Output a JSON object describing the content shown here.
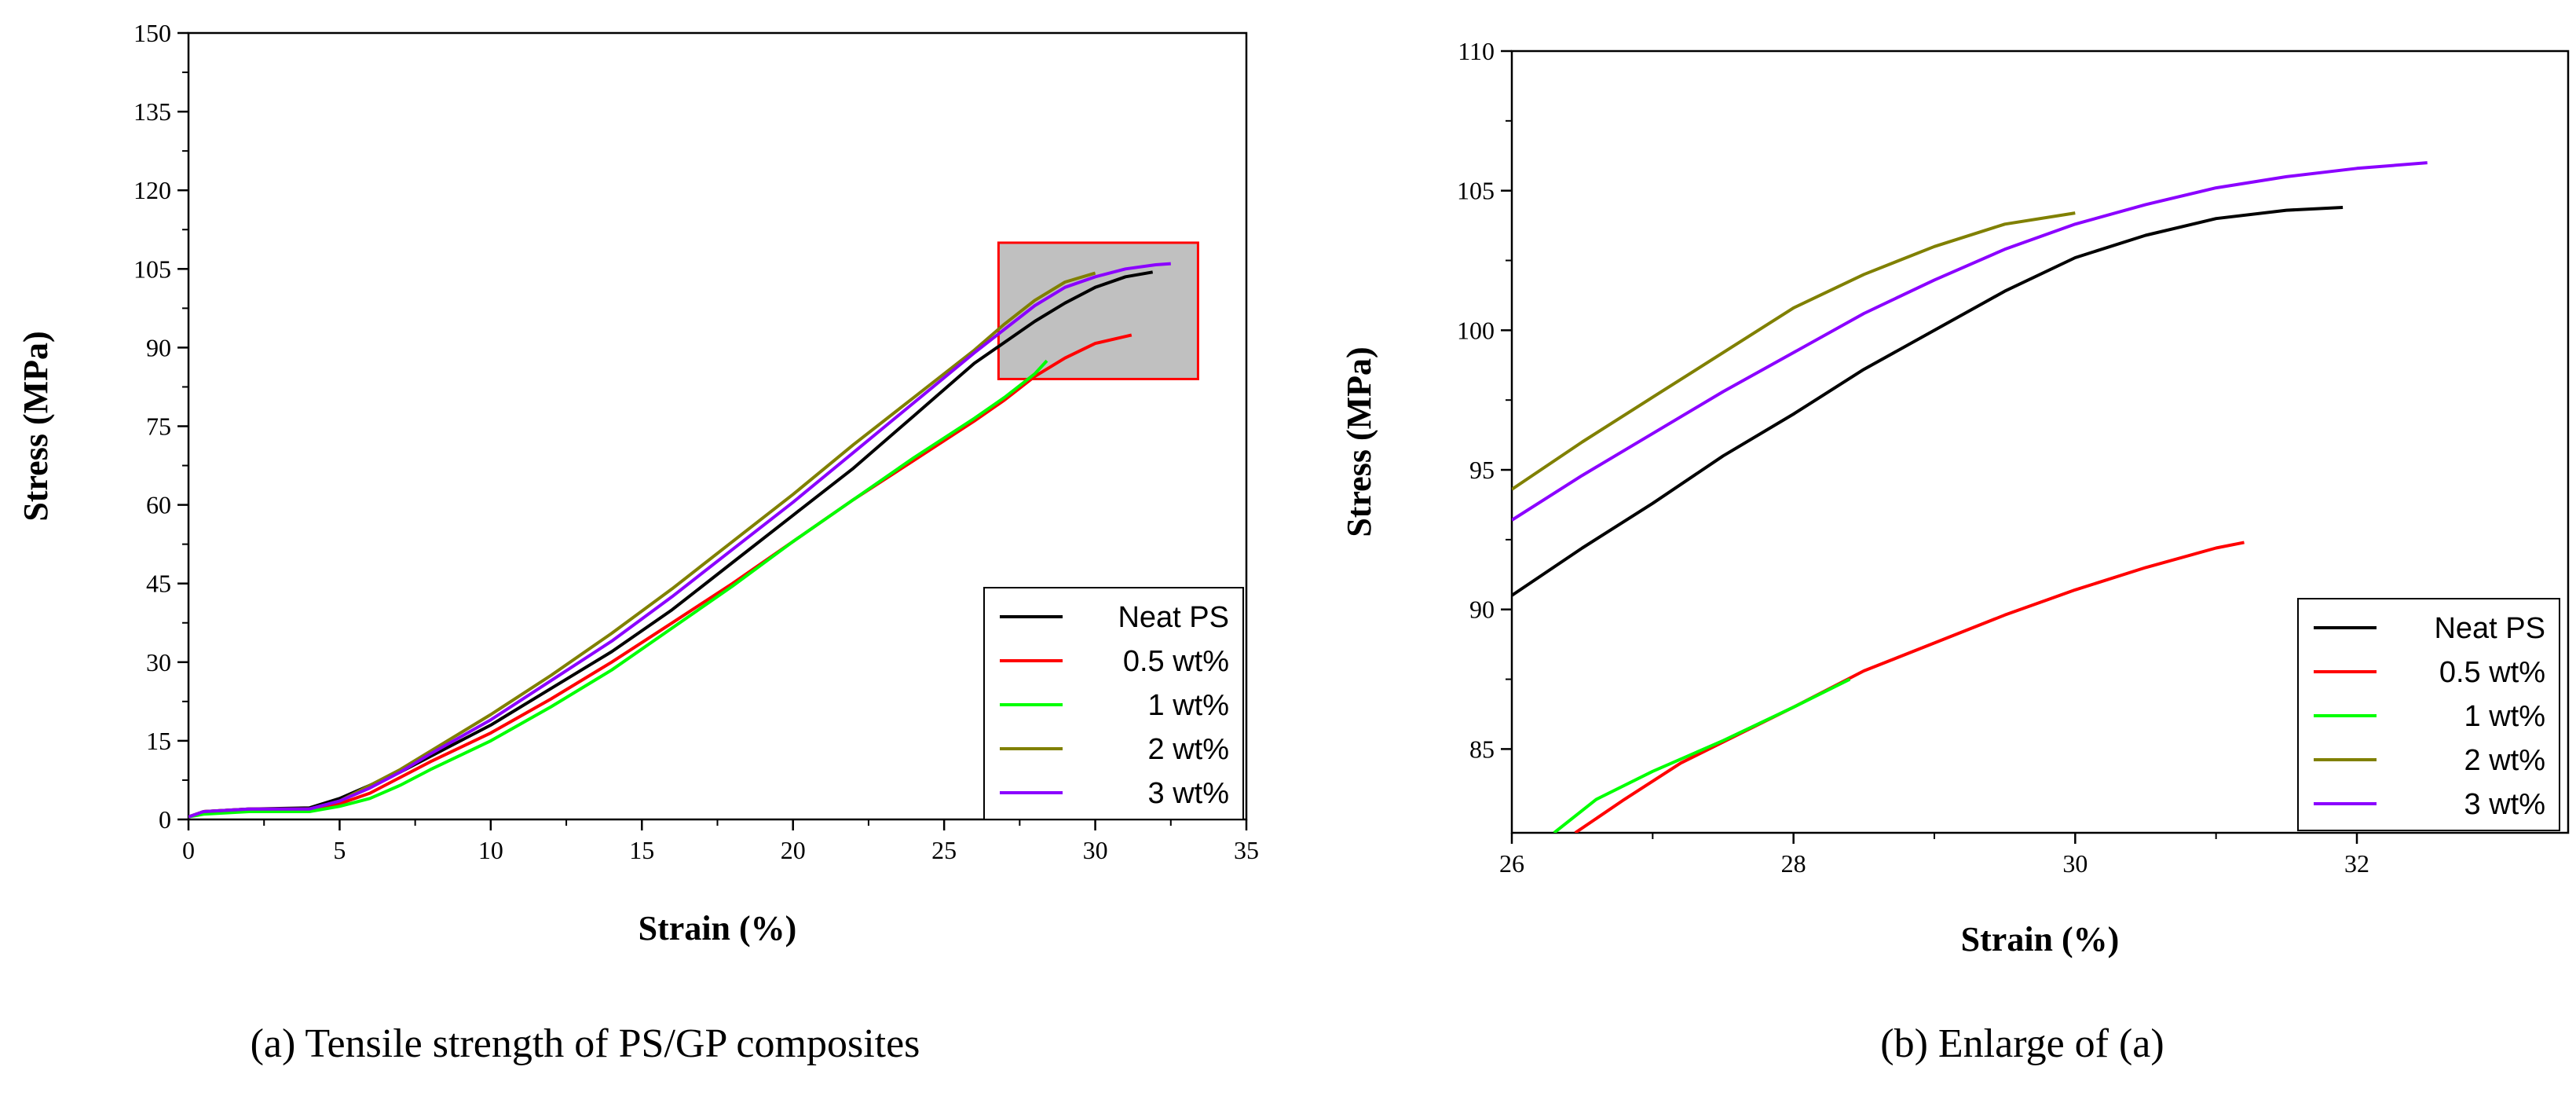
{
  "colors": {
    "neat_ps": "#000000",
    "wt05": "#ff0000",
    "wt1": "#00ff00",
    "wt2": "#808000",
    "wt3": "#8b00ff",
    "zoom_box_fill": "#c0c0c0",
    "zoom_box_stroke": "#ff0000"
  },
  "chart_data": [
    {
      "type": "line",
      "caption": "(a) Tensile strength of PS/GP composites",
      "xlabel": "Strain (%)",
      "ylabel": "Stress (MPa)",
      "xlim": [
        0,
        35
      ],
      "ylim": [
        0,
        150
      ],
      "xticks": [
        0,
        5,
        10,
        15,
        20,
        25,
        30,
        35
      ],
      "yticks": [
        0,
        15,
        30,
        45,
        60,
        75,
        90,
        105,
        120,
        135,
        150
      ],
      "legend_position": "bottom-right",
      "highlight_box": {
        "x": [
          26.8,
          33.4
        ],
        "y": [
          84,
          110
        ]
      },
      "series": [
        {
          "name": "Neat PS",
          "color_key": "neat_ps",
          "points": [
            [
              0,
              0.5
            ],
            [
              0.5,
              1.5
            ],
            [
              2,
              2
            ],
            [
              4,
              2.2
            ],
            [
              5,
              4
            ],
            [
              6,
              6.5
            ],
            [
              7,
              9
            ],
            [
              8,
              12
            ],
            [
              10,
              18
            ],
            [
              12,
              25
            ],
            [
              14,
              32
            ],
            [
              16,
              40
            ],
            [
              18,
              49
            ],
            [
              20,
              58
            ],
            [
              22,
              67
            ],
            [
              24,
              77
            ],
            [
              26,
              87
            ],
            [
              28,
              95
            ],
            [
              29,
              98.5
            ],
            [
              30,
              101.5
            ],
            [
              31,
              103.5
            ],
            [
              31.9,
              104.4
            ]
          ]
        },
        {
          "name": "0.5 wt%",
          "color_key": "wt05",
          "points": [
            [
              0,
              0.5
            ],
            [
              0.5,
              1.5
            ],
            [
              2,
              2
            ],
            [
              4,
              2
            ],
            [
              5,
              3
            ],
            [
              6,
              5
            ],
            [
              7,
              8
            ],
            [
              8,
              11
            ],
            [
              10,
              16.5
            ],
            [
              12,
              23
            ],
            [
              14,
              30
            ],
            [
              16,
              37.5
            ],
            [
              18,
              45
            ],
            [
              20,
              53
            ],
            [
              22,
              61
            ],
            [
              24,
              68.5
            ],
            [
              26,
              76
            ],
            [
              27,
              80
            ],
            [
              28,
              84.5
            ],
            [
              29,
              88
            ],
            [
              30,
              90.8
            ],
            [
              31.2,
              92.4
            ]
          ]
        },
        {
          "name": "1 wt%",
          "color_key": "wt1",
          "points": [
            [
              0,
              0.5
            ],
            [
              0.5,
              1
            ],
            [
              2,
              1.5
            ],
            [
              4,
              1.5
            ],
            [
              5,
              2.5
            ],
            [
              6,
              4
            ],
            [
              7,
              6.5
            ],
            [
              8,
              9.5
            ],
            [
              10,
              15
            ],
            [
              12,
              21.5
            ],
            [
              14,
              28.5
            ],
            [
              16,
              36.5
            ],
            [
              18,
              44.5
            ],
            [
              20,
              53
            ],
            [
              22,
              61
            ],
            [
              24,
              69
            ],
            [
              26,
              76.5
            ],
            [
              27,
              80.5
            ],
            [
              28,
              85
            ],
            [
              28.4,
              87.5
            ]
          ]
        },
        {
          "name": "2 wt%",
          "color_key": "wt2",
          "points": [
            [
              0,
              0.5
            ],
            [
              0.5,
              1.5
            ],
            [
              2,
              2
            ],
            [
              4,
              2
            ],
            [
              5,
              3.5
            ],
            [
              6,
              6.5
            ],
            [
              7,
              9.5
            ],
            [
              8,
              13
            ],
            [
              10,
              20
            ],
            [
              12,
              27.5
            ],
            [
              14,
              35.5
            ],
            [
              16,
              44
            ],
            [
              18,
              53
            ],
            [
              20,
              62
            ],
            [
              22,
              71.5
            ],
            [
              24,
              80.5
            ],
            [
              26,
              89.5
            ],
            [
              27,
              94.5
            ],
            [
              28,
              99
            ],
            [
              29,
              102.5
            ],
            [
              30,
              104.2
            ]
          ]
        },
        {
          "name": "3 wt%",
          "color_key": "wt3",
          "points": [
            [
              0,
              0.5
            ],
            [
              0.5,
              1.5
            ],
            [
              2,
              2
            ],
            [
              4,
              2
            ],
            [
              5,
              3.5
            ],
            [
              6,
              6
            ],
            [
              7,
              9
            ],
            [
              8,
              12.5
            ],
            [
              10,
              19
            ],
            [
              12,
              26.5
            ],
            [
              14,
              34
            ],
            [
              16,
              42.5
            ],
            [
              18,
              51.5
            ],
            [
              20,
              60.5
            ],
            [
              22,
              70
            ],
            [
              24,
              79.5
            ],
            [
              26,
              89
            ],
            [
              27,
              93.5
            ],
            [
              28,
              98
            ],
            [
              29,
              101.5
            ],
            [
              30,
              103.5
            ],
            [
              31,
              105
            ],
            [
              32,
              105.8
            ],
            [
              32.5,
              106
            ]
          ]
        }
      ]
    },
    {
      "type": "line",
      "caption": "(b) Enlarge of (a)",
      "xlabel": "Strain (%)",
      "ylabel": "Stress (MPa)",
      "xlim": [
        26,
        33.5
      ],
      "ylim": [
        82,
        110
      ],
      "xticks": [
        26,
        28,
        30,
        32
      ],
      "yticks": [
        85,
        90,
        95,
        100,
        105,
        110
      ],
      "legend_position": "bottom-right",
      "series": [
        {
          "name": "Neat PS",
          "color_key": "neat_ps",
          "points": [
            [
              26,
              90.5
            ],
            [
              26.5,
              92.2
            ],
            [
              27,
              93.8
            ],
            [
              27.5,
              95.5
            ],
            [
              28,
              97
            ],
            [
              28.5,
              98.6
            ],
            [
              29,
              100
            ],
            [
              29.5,
              101.4
            ],
            [
              30,
              102.6
            ],
            [
              30.5,
              103.4
            ],
            [
              31,
              104
            ],
            [
              31.5,
              104.3
            ],
            [
              31.9,
              104.4
            ]
          ]
        },
        {
          "name": "0.5 wt%",
          "color_key": "wt05",
          "points": [
            [
              26.45,
              82
            ],
            [
              26.8,
              83.2
            ],
            [
              27.2,
              84.5
            ],
            [
              27.6,
              85.5
            ],
            [
              28,
              86.5
            ],
            [
              28.5,
              87.8
            ],
            [
              29,
              88.8
            ],
            [
              29.5,
              89.8
            ],
            [
              30,
              90.7
            ],
            [
              30.5,
              91.5
            ],
            [
              31,
              92.2
            ],
            [
              31.2,
              92.4
            ]
          ]
        },
        {
          "name": "1 wt%",
          "color_key": "wt1",
          "points": [
            [
              26.3,
              82
            ],
            [
              26.6,
              83.2
            ],
            [
              27,
              84.2
            ],
            [
              27.5,
              85.3
            ],
            [
              28,
              86.5
            ],
            [
              28.4,
              87.5
            ]
          ]
        },
        {
          "name": "2 wt%",
          "color_key": "wt2",
          "points": [
            [
              26,
              94.3
            ],
            [
              26.5,
              96
            ],
            [
              27,
              97.6
            ],
            [
              27.5,
              99.2
            ],
            [
              28,
              100.8
            ],
            [
              28.5,
              102
            ],
            [
              29,
              103
            ],
            [
              29.5,
              103.8
            ],
            [
              30,
              104.2
            ]
          ]
        },
        {
          "name": "3 wt%",
          "color_key": "wt3",
          "points": [
            [
              26,
              93.2
            ],
            [
              26.5,
              94.8
            ],
            [
              27,
              96.3
            ],
            [
              27.5,
              97.8
            ],
            [
              28,
              99.2
            ],
            [
              28.5,
              100.6
            ],
            [
              29,
              101.8
            ],
            [
              29.5,
              102.9
            ],
            [
              30,
              103.8
            ],
            [
              30.5,
              104.5
            ],
            [
              31,
              105.1
            ],
            [
              31.5,
              105.5
            ],
            [
              32,
              105.8
            ],
            [
              32.5,
              106
            ]
          ]
        }
      ]
    }
  ]
}
